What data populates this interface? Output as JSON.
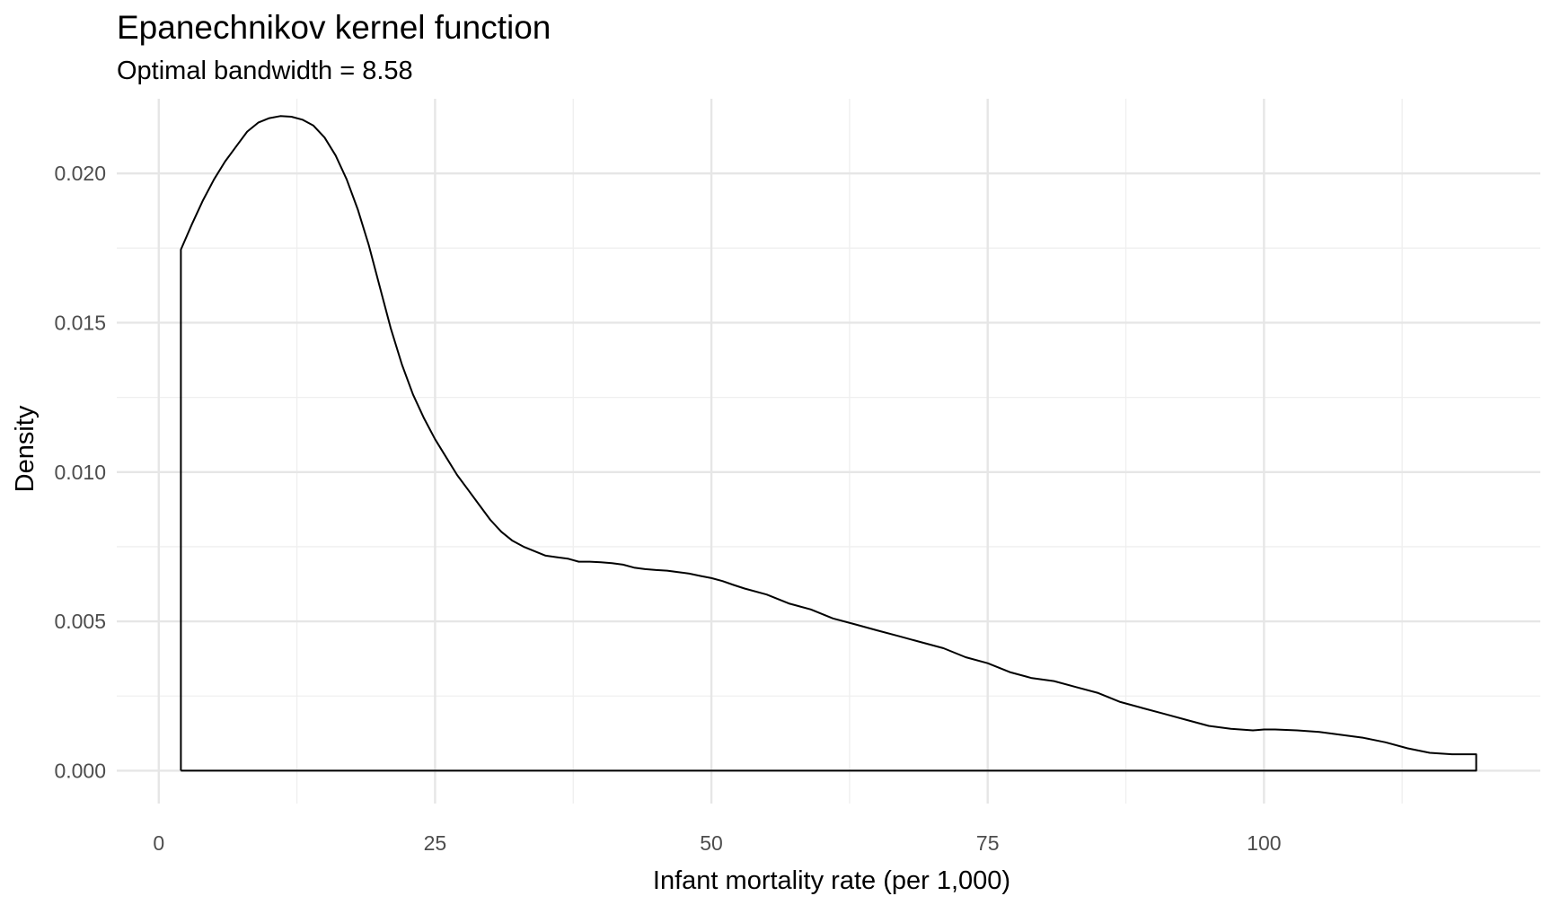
{
  "chart_data": {
    "type": "line",
    "title": "Epanechnikov kernel function",
    "subtitle": "Optimal bandwidth = 8.58",
    "xlabel": "Infant mortality rate (per 1,000)",
    "ylabel": "Density",
    "xlim": [
      -3.8,
      125
    ],
    "ylim": [
      -0.0011,
      0.0225
    ],
    "x_ticks": [
      0,
      25,
      50,
      75,
      100
    ],
    "x_tick_labels": [
      "0",
      "25",
      "50",
      "75",
      "100"
    ],
    "y_ticks": [
      0.0,
      0.005,
      0.01,
      0.015,
      0.02
    ],
    "y_tick_labels": [
      "0.000",
      "0.005",
      "0.010",
      "0.015",
      "0.020"
    ],
    "grid": true,
    "legend": "none",
    "line_color": "#000000",
    "series": [
      {
        "x": [
          2.0,
          2.0,
          3.0,
          4.0,
          5.0,
          6.0,
          7.0,
          8.0,
          9.0,
          10.0,
          11.0,
          12.0,
          13.0,
          14.0,
          15.0,
          16.0,
          17.0,
          18.0,
          19.0,
          20.0,
          21.0,
          22.0,
          23.0,
          24.0,
          25.0,
          26.0,
          27.0,
          28.0,
          29.0,
          30.0,
          31.0,
          32.0,
          33.0,
          34.0,
          35.0,
          36.0,
          37.0,
          38.0,
          39.0,
          40.0,
          41.0,
          42.0,
          43.0,
          44.0,
          45.0,
          46.0,
          47.0,
          48.0,
          49.0,
          50.0,
          51.0,
          52.0,
          53.0,
          55.0,
          57.0,
          59.0,
          61.0,
          63.0,
          65.0,
          67.0,
          69.0,
          71.0,
          73.0,
          75.0,
          77.0,
          79.0,
          81.0,
          83.0,
          85.0,
          87.0,
          89.0,
          91.0,
          93.0,
          95.0,
          97.0,
          99.0,
          100.0,
          101.0,
          103.0,
          105.0,
          107.0,
          109.0,
          111.0,
          113.0,
          115.0,
          117.0,
          119.0,
          119.2,
          119.2,
          2.0
        ],
        "y": [
          0.0,
          0.01745,
          0.0183,
          0.0191,
          0.0198,
          0.0204,
          0.0209,
          0.0214,
          0.0217,
          0.02185,
          0.02192,
          0.0219,
          0.0218,
          0.0216,
          0.0212,
          0.0206,
          0.0198,
          0.0188,
          0.0176,
          0.0162,
          0.0148,
          0.0136,
          0.0126,
          0.0118,
          0.0111,
          0.0105,
          0.0099,
          0.0094,
          0.0089,
          0.0084,
          0.008,
          0.0077,
          0.0075,
          0.00735,
          0.0072,
          0.00715,
          0.0071,
          0.007,
          0.007,
          0.00698,
          0.00695,
          0.0069,
          0.0068,
          0.00675,
          0.00672,
          0.0067,
          0.00665,
          0.0066,
          0.00652,
          0.00645,
          0.00635,
          0.00622,
          0.0061,
          0.0059,
          0.0056,
          0.0054,
          0.0051,
          0.0049,
          0.0047,
          0.0045,
          0.0043,
          0.0041,
          0.0038,
          0.0036,
          0.0033,
          0.0031,
          0.003,
          0.0028,
          0.0026,
          0.0023,
          0.0021,
          0.0019,
          0.0017,
          0.0015,
          0.0014,
          0.00135,
          0.00138,
          0.00138,
          0.00135,
          0.0013,
          0.0012,
          0.0011,
          0.00095,
          0.00075,
          0.0006,
          0.00055,
          0.00055,
          0.00055,
          0.0,
          0.0
        ]
      }
    ]
  }
}
